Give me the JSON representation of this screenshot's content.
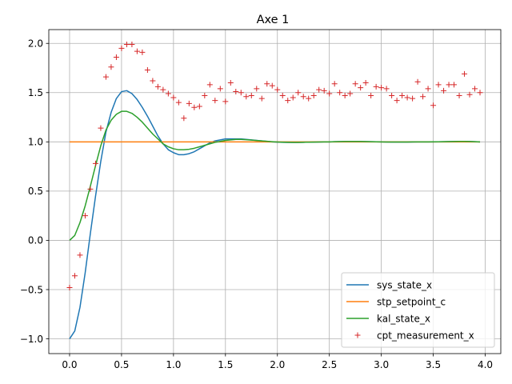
{
  "chart_data": {
    "type": "line",
    "title": "Axe 1",
    "xlabel": "",
    "ylabel": "",
    "xlim": [
      -0.2,
      4.15
    ],
    "ylim": [
      -1.15,
      2.14
    ],
    "xticks": [
      0.0,
      0.5,
      1.0,
      1.5,
      2.0,
      2.5,
      3.0,
      3.5,
      4.0
    ],
    "xtick_labels": [
      "0.0",
      "0.5",
      "1.0",
      "1.5",
      "2.0",
      "2.5",
      "3.0",
      "3.5",
      "4.0"
    ],
    "yticks": [
      -1.0,
      -0.5,
      0.0,
      0.5,
      1.0,
      1.5,
      2.0
    ],
    "ytick_labels": [
      "−1.0",
      "−0.5",
      "0.0",
      "0.5",
      "1.0",
      "1.5",
      "2.0"
    ],
    "grid": true,
    "legend_position": "bottom-right",
    "x": [
      0.0,
      0.05,
      0.1,
      0.15,
      0.2,
      0.25,
      0.3,
      0.35,
      0.4,
      0.45,
      0.5,
      0.55,
      0.6,
      0.65,
      0.7,
      0.75,
      0.8,
      0.85,
      0.9,
      0.95,
      1.0,
      1.05,
      1.1,
      1.15,
      1.2,
      1.25,
      1.3,
      1.35,
      1.4,
      1.45,
      1.5,
      1.55,
      1.6,
      1.65,
      1.7,
      1.75,
      1.8,
      1.85,
      1.9,
      1.95,
      2.0,
      2.05,
      2.1,
      2.15,
      2.2,
      2.25,
      2.3,
      2.35,
      2.4,
      2.45,
      2.5,
      2.55,
      2.6,
      2.65,
      2.7,
      2.75,
      2.8,
      2.85,
      2.9,
      2.95,
      3.0,
      3.05,
      3.1,
      3.15,
      3.2,
      3.25,
      3.3,
      3.35,
      3.4,
      3.45,
      3.5,
      3.55,
      3.6,
      3.65,
      3.7,
      3.75,
      3.8,
      3.85,
      3.9,
      3.95
    ],
    "series": [
      {
        "name": "sys_state_x",
        "style": "line",
        "color": "#1f77b4",
        "values": [
          -1.0,
          -0.92,
          -0.68,
          -0.33,
          0.07,
          0.45,
          0.8,
          1.1,
          1.3,
          1.44,
          1.51,
          1.52,
          1.49,
          1.43,
          1.35,
          1.26,
          1.16,
          1.06,
          0.98,
          0.92,
          0.89,
          0.87,
          0.87,
          0.88,
          0.9,
          0.93,
          0.96,
          0.99,
          1.01,
          1.02,
          1.03,
          1.03,
          1.03,
          1.03,
          1.025,
          1.02,
          1.015,
          1.01,
          1.005,
          1.0,
          0.998,
          0.996,
          0.995,
          0.995,
          0.995,
          0.996,
          0.997,
          0.998,
          0.999,
          1.0,
          1.0,
          1.002,
          1.003,
          1.004,
          1.004,
          1.004,
          1.004,
          1.003,
          1.002,
          1.001,
          1.0,
          0.999,
          0.998,
          0.998,
          0.998,
          0.998,
          0.999,
          1.0,
          1.0,
          1.0,
          1.0,
          1.001,
          1.002,
          1.003,
          1.004,
          1.005,
          1.005,
          1.004,
          1.002,
          1.0
        ]
      },
      {
        "name": "stp_setpoint_c",
        "style": "line",
        "color": "#ff7f0e",
        "values": [
          1.0,
          1.0,
          1.0,
          1.0,
          1.0,
          1.0,
          1.0,
          1.0,
          1.0,
          1.0,
          1.0,
          1.0,
          1.0,
          1.0,
          1.0,
          1.0,
          1.0,
          1.0,
          1.0,
          1.0,
          1.0,
          1.0,
          1.0,
          1.0,
          1.0,
          1.0,
          1.0,
          1.0,
          1.0,
          1.0,
          1.0,
          1.0,
          1.0,
          1.0,
          1.0,
          1.0,
          1.0,
          1.0,
          1.0,
          1.0,
          1.0,
          1.0,
          1.0,
          1.0,
          1.0,
          1.0,
          1.0,
          1.0,
          1.0,
          1.0,
          1.0,
          1.0,
          1.0,
          1.0,
          1.0,
          1.0,
          1.0,
          1.0,
          1.0,
          1.0,
          1.0,
          1.0,
          1.0,
          1.0,
          1.0,
          1.0,
          1.0,
          1.0,
          1.0,
          1.0,
          1.0,
          1.0,
          1.0,
          1.0,
          1.0,
          1.0,
          1.0,
          1.0,
          1.0,
          1.0
        ]
      },
      {
        "name": "kal_state_x",
        "style": "line",
        "color": "#2ca02c",
        "values": [
          0.0,
          0.05,
          0.18,
          0.35,
          0.55,
          0.76,
          0.96,
          1.12,
          1.22,
          1.28,
          1.31,
          1.31,
          1.29,
          1.25,
          1.2,
          1.14,
          1.08,
          1.03,
          0.98,
          0.95,
          0.93,
          0.92,
          0.92,
          0.925,
          0.935,
          0.95,
          0.965,
          0.98,
          0.995,
          1.005,
          1.015,
          1.02,
          1.025,
          1.025,
          1.022,
          1.018,
          1.014,
          1.01,
          1.006,
          1.002,
          0.999,
          0.997,
          0.996,
          0.995,
          0.995,
          0.996,
          0.997,
          0.998,
          0.999,
          1.0,
          1.0,
          1.002,
          1.003,
          1.004,
          1.004,
          1.004,
          1.004,
          1.003,
          1.002,
          1.001,
          1.0,
          0.999,
          0.999,
          0.999,
          0.999,
          0.999,
          1.0,
          1.0,
          1.0,
          1.0,
          1.001,
          1.001,
          1.002,
          1.003,
          1.004,
          1.005,
          1.005,
          1.004,
          1.002,
          1.0
        ]
      },
      {
        "name": "cpt_measurement_x",
        "style": "marker",
        "color": "#d62728",
        "values": [
          -0.48,
          -0.36,
          -0.15,
          0.25,
          0.52,
          0.78,
          1.14,
          1.66,
          1.76,
          1.86,
          1.95,
          1.99,
          1.99,
          1.92,
          1.91,
          1.73,
          1.62,
          1.56,
          1.53,
          1.49,
          1.45,
          1.4,
          1.24,
          1.39,
          1.35,
          1.36,
          1.47,
          1.58,
          1.42,
          1.54,
          1.41,
          1.6,
          1.51,
          1.5,
          1.46,
          1.47,
          1.54,
          1.44,
          1.59,
          1.57,
          1.53,
          1.47,
          1.42,
          1.45,
          1.5,
          1.46,
          1.44,
          1.47,
          1.53,
          1.52,
          1.49,
          1.59,
          1.5,
          1.47,
          1.49,
          1.59,
          1.55,
          1.6,
          1.47,
          1.56,
          1.55,
          1.54,
          1.47,
          1.42,
          1.47,
          1.45,
          1.44,
          1.61,
          1.46,
          1.54,
          1.37,
          1.58,
          1.52,
          1.58,
          1.58,
          1.47,
          1.69,
          1.48,
          1.54,
          1.5
        ]
      }
    ]
  }
}
